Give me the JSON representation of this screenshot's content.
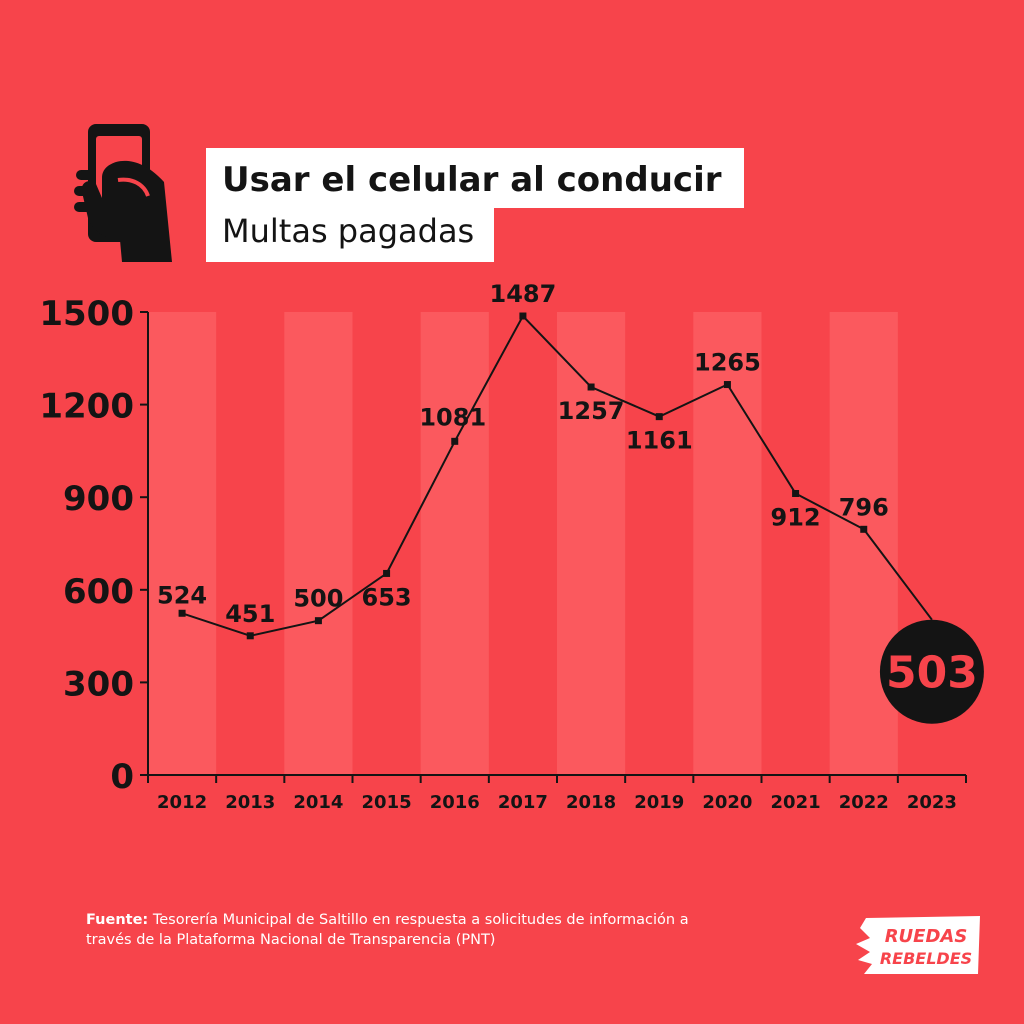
{
  "header": {
    "title": "Usar el celular al conducir",
    "subtitle": "Multas pagadas"
  },
  "icons": {
    "phone": "hand-holding-phone-icon",
    "logo": "ruedas-rebeldes-logo"
  },
  "logo": {
    "line1": "RUEDAS",
    "line2": "REBELDES"
  },
  "footer": {
    "source_label": "Fuente:",
    "source_text": "Tesorería Municipal de Saltillo en respuesta a solicitudes de información a través de la Plataforma Nacional de Transparencia (PNT)"
  },
  "colors": {
    "background": "#f7444b",
    "band_light": "#ff6b6f",
    "ink": "#141414",
    "highlight_circle": "#141414",
    "highlight_text": "#f7444b"
  },
  "chart_data": {
    "type": "line",
    "title": "Usar el celular al conducir",
    "subtitle": "Multas pagadas",
    "categories": [
      "2012",
      "2013",
      "2014",
      "2015",
      "2016",
      "2017",
      "2018",
      "2019",
      "2020",
      "2021",
      "2022",
      "2023"
    ],
    "values": [
      524,
      451,
      500,
      653,
      1081,
      1487,
      1257,
      1161,
      1265,
      912,
      796,
      503
    ],
    "ylim": [
      0,
      1500
    ],
    "yticks": [
      0,
      300,
      600,
      900,
      1200,
      1500
    ],
    "highlight": {
      "category": "2023",
      "value": 503
    },
    "xlabel": "",
    "ylabel": ""
  }
}
